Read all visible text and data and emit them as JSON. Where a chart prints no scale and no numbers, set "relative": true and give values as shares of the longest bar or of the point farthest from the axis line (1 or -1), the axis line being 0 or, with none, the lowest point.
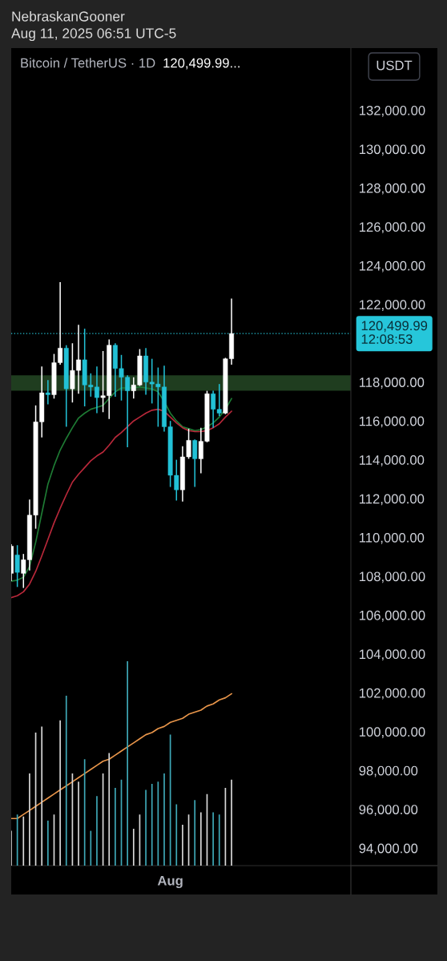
{
  "chart_data": [
    {
      "type": "candlestick",
      "title": "Bitcoin / TetherUS · 1D",
      "subtitle": "120,499.99...",
      "ylabel": "USDT",
      "annotations": [
        "NebraskanGooner",
        "Aug 11, 2025 06:51 UTC-5"
      ],
      "categories": [
        null,
        null,
        null,
        null,
        null,
        null,
        null,
        null,
        null,
        null,
        null,
        null,
        null,
        null,
        null,
        null,
        null,
        null,
        null,
        null,
        null,
        null,
        null,
        null,
        null,
        null,
        "Aug",
        null,
        null,
        null,
        null,
        null,
        null,
        null,
        null,
        null,
        null
      ],
      "ohlc": [
        [
          108150,
          109650,
          107750,
          109550
        ],
        [
          109100,
          109600,
          107450,
          108200
        ],
        [
          108150,
          109150,
          107400,
          108850
        ],
        [
          108850,
          111950,
          108300,
          111150
        ],
        [
          111150,
          116800,
          110450,
          115950
        ],
        [
          115950,
          118800,
          115150,
          117450
        ],
        [
          117450,
          118100,
          116850,
          117350
        ],
        [
          117350,
          119450,
          117150,
          119000
        ],
        [
          119000,
          123150,
          118900,
          119750
        ],
        [
          119750,
          119900,
          115700,
          117650
        ],
        [
          117650,
          120000,
          116950,
          118600
        ],
        [
          118600,
          120950,
          117400,
          119150
        ],
        [
          119150,
          120750,
          116750,
          117850
        ],
        [
          117850,
          118450,
          117250,
          117750
        ],
        [
          117750,
          118800,
          116400,
          117200
        ],
        [
          117200,
          119600,
          116450,
          117300
        ],
        [
          117300,
          120200,
          116100,
          119900
        ],
        [
          119900,
          120000,
          117250,
          118700
        ],
        [
          118700,
          119400,
          117050,
          118250
        ],
        [
          118250,
          118350,
          114650,
          117550
        ],
        [
          117550,
          118250,
          117150,
          117850
        ],
        [
          117850,
          119700,
          117800,
          119350
        ],
        [
          119350,
          119750,
          117350,
          118000
        ],
        [
          118000,
          119200,
          116900,
          117900
        ],
        [
          117900,
          118750,
          115700,
          117750
        ],
        [
          117750,
          118850,
          115450,
          115700
        ],
        [
          115700,
          116000,
          112600,
          113200
        ],
        [
          113200,
          114000,
          111900,
          112450
        ],
        [
          112450,
          114700,
          111850,
          114150
        ],
        [
          114150,
          115600,
          114050,
          115000
        ],
        [
          115000,
          115050,
          112600,
          114050
        ],
        [
          114050,
          115650,
          113300,
          114950
        ],
        [
          114950,
          117550,
          114900,
          117400
        ],
        [
          117400,
          117550,
          115650,
          116600
        ],
        [
          116600,
          117900,
          116250,
          116400
        ],
        [
          116400,
          119250,
          116350,
          119200
        ],
        [
          119200,
          122300,
          118900,
          120499.99
        ]
      ],
      "colors": [
        "#ffffff",
        "#22c1d6",
        "#ffffff",
        "#ffffff",
        "#ffffff",
        "#ffffff",
        "#22c1d6",
        "#ffffff",
        "#ffffff",
        "#22c1d6",
        "#ffffff",
        "#ffffff",
        "#22c1d6",
        "#22c1d6",
        "#22c1d6",
        "#ffffff",
        "#ffffff",
        "#22c1d6",
        "#22c1d6",
        "#22c1d6",
        "#ffffff",
        "#ffffff",
        "#22c1d6",
        "#22c1d6",
        "#22c1d6",
        "#22c1d6",
        "#22c1d6",
        "#22c1d6",
        "#ffffff",
        "#ffffff",
        "#22c1d6",
        "#ffffff",
        "#ffffff",
        "#22c1d6",
        "#22c1d6",
        "#ffffff",
        "#ffffff"
      ],
      "series": [
        {
          "type": "line",
          "color": "#1e7b34",
          "values": [
            107750,
            107800,
            107950,
            108500,
            109750,
            111250,
            112750,
            113700,
            114500,
            115100,
            115650,
            116150,
            116400,
            116600,
            116700,
            116800,
            117150,
            117500,
            117700,
            117700,
            117700,
            117750,
            117700,
            117650,
            117500,
            117000,
            116400,
            116000,
            115700,
            115600,
            115500,
            115550,
            115700,
            115900,
            116200,
            116600,
            117150
          ]
        },
        {
          "type": "line",
          "color": "#b8283a",
          "values": [
            106900,
            107000,
            107200,
            107600,
            108250,
            109050,
            109900,
            110750,
            111500,
            112200,
            112850,
            113250,
            113600,
            113950,
            114200,
            114400,
            114750,
            115150,
            115400,
            115700,
            116000,
            116200,
            116400,
            116550,
            116600,
            116500,
            116200,
            115900,
            115650,
            115500,
            115450,
            115450,
            115500,
            115650,
            115850,
            116200,
            116500
          ]
        }
      ],
      "bands": [
        {
          "axis": "y",
          "from": 117550,
          "to": 118350,
          "color": "#1f3d1f"
        }
      ],
      "ref_lines": [
        {
          "axis": "y",
          "value": 120499.99,
          "label": "120,499.99\n12:08:53",
          "color": "#26c6da",
          "line_style": "dotted"
        }
      ],
      "ylim": [
        93100,
        135200
      ],
      "yticks": [
        {
          "value": 94000,
          "label": "94,000.00"
        },
        {
          "value": 96000,
          "label": "96,000.00"
        },
        {
          "value": 98000,
          "label": "98,000.00"
        },
        {
          "value": 100000,
          "label": "100,000.00"
        },
        {
          "value": 102000,
          "label": "102,000.00"
        },
        {
          "value": 104000,
          "label": "104,000.00"
        },
        {
          "value": 106000,
          "label": "106,000.00"
        },
        {
          "value": 108000,
          "label": "108,000.00"
        },
        {
          "value": 110000,
          "label": "110,000.00"
        },
        {
          "value": 112000,
          "label": "112,000.00"
        },
        {
          "value": 114000,
          "label": "114,000.00"
        },
        {
          "value": 116000,
          "label": "116,000.00"
        },
        {
          "value": 118000,
          "label": "118,000.00"
        },
        {
          "value": 122000,
          "label": "122,000.00"
        },
        {
          "value": 124000,
          "label": "124,000.00"
        },
        {
          "value": 126000,
          "label": "126,000.00"
        },
        {
          "value": 128000,
          "label": "128,000.00"
        },
        {
          "value": 130000,
          "label": "130,000.00"
        },
        {
          "value": 132000,
          "label": "132,000.00"
        }
      ]
    },
    {
      "type": "bar",
      "relative": true,
      "categories": [
        null,
        null,
        null,
        null,
        null,
        null,
        null,
        null,
        null,
        null,
        null,
        null,
        null,
        null,
        null,
        null,
        null,
        null,
        null,
        null,
        null,
        null,
        null,
        null,
        null,
        null,
        null,
        null,
        null,
        null,
        null,
        null,
        null,
        null,
        null,
        null,
        null
      ],
      "series": [
        {
          "type": "bar",
          "values": [
            0.17,
            0.25,
            0.24,
            0.45,
            0.65,
            0.68,
            0.22,
            0.25,
            0.71,
            0.83,
            0.45,
            0.41,
            0.52,
            0.17,
            0.34,
            0.45,
            0.55,
            0.38,
            0.42,
            1,
            0.18,
            0.25,
            0.37,
            0.4,
            0.41,
            0.45,
            0.64,
            0.3,
            0.2,
            0.25,
            0.32,
            0.26,
            0.35,
            0.26,
            0.25,
            0.38,
            0.42
          ],
          "colors": [
            "#d9d9d9",
            "#3fa9b8",
            "#d9d9d9",
            "#d9d9d9",
            "#d9d9d9",
            "#d9d9d9",
            "#3fa9b8",
            "#d9d9d9",
            "#d9d9d9",
            "#3fa9b8",
            "#d9d9d9",
            "#d9d9d9",
            "#3fa9b8",
            "#3fa9b8",
            "#3fa9b8",
            "#d9d9d9",
            "#d9d9d9",
            "#3fa9b8",
            "#3fa9b8",
            "#3fa9b8",
            "#d9d9d9",
            "#d9d9d9",
            "#3fa9b8",
            "#3fa9b8",
            "#3fa9b8",
            "#3fa9b8",
            "#3fa9b8",
            "#3fa9b8",
            "#d9d9d9",
            "#d9d9d9",
            "#3fa9b8",
            "#d9d9d9",
            "#d9d9d9",
            "#3fa9b8",
            "#3fa9b8",
            "#d9d9d9",
            "#d9d9d9"
          ]
        },
        {
          "type": "line",
          "color": "#e8954a",
          "values": [
            0.23,
            0.23,
            0.25,
            0.27,
            0.29,
            0.31,
            0.33,
            0.35,
            0.37,
            0.39,
            0.41,
            0.43,
            0.45,
            0.47,
            0.49,
            0.51,
            0.52,
            0.54,
            0.56,
            0.58,
            0.6,
            0.62,
            0.64,
            0.65,
            0.67,
            0.68,
            0.7,
            0.71,
            0.72,
            0.74,
            0.75,
            0.76,
            0.78,
            0.79,
            0.81,
            0.82,
            0.84
          ]
        }
      ]
    }
  ]
}
